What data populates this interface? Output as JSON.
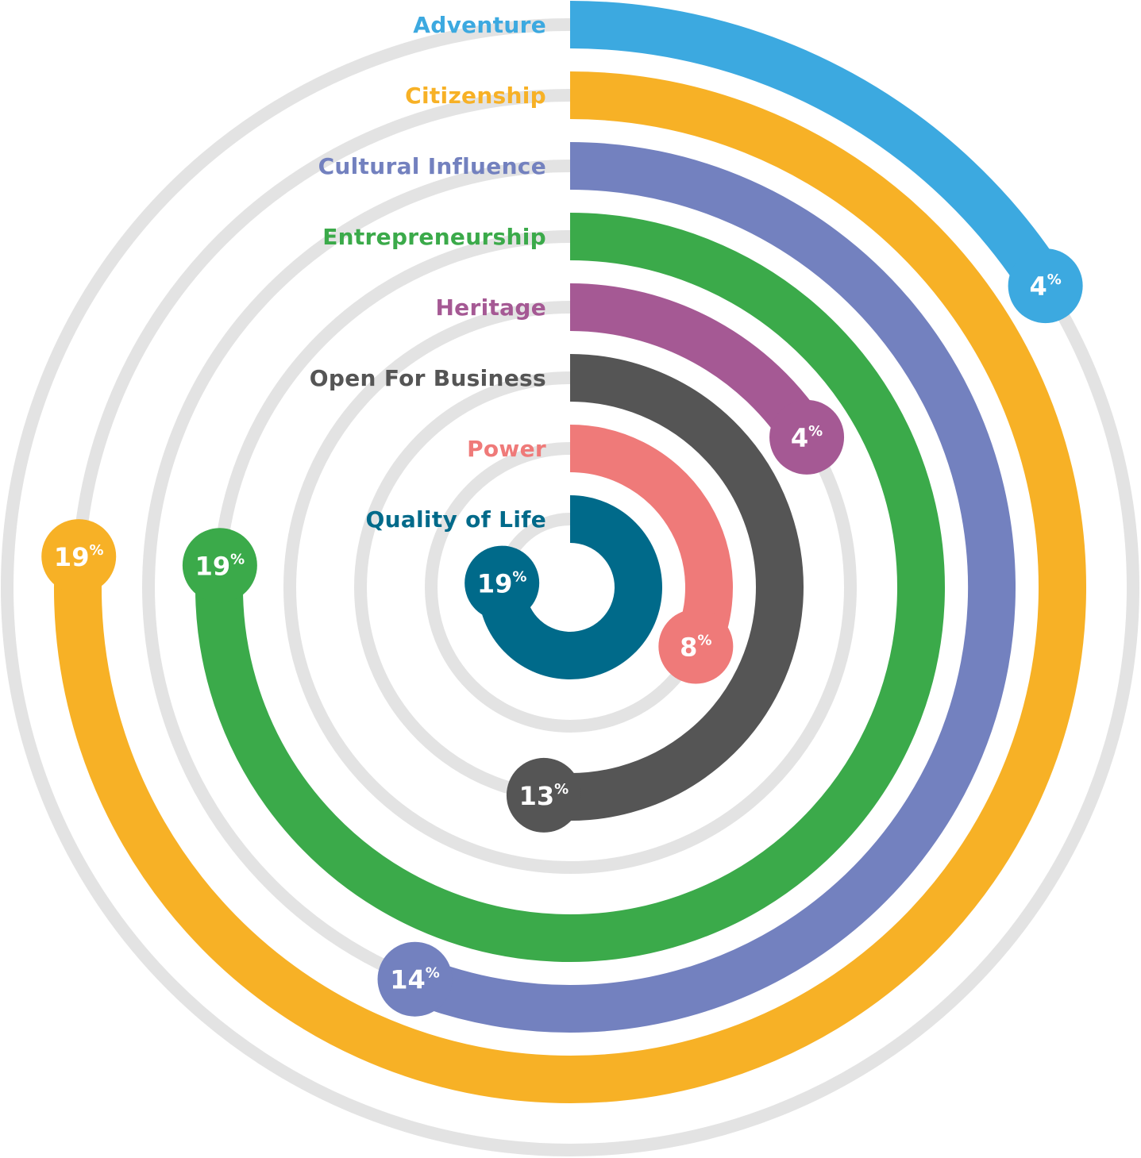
{
  "chart_data": {
    "type": "radial-bar",
    "unit_symbol": "%",
    "grid": true,
    "max_value": 25,
    "categories": [
      "Adventure",
      "Citizenship",
      "Cultural Influence",
      "Entrepreneurship",
      "Heritage",
      "Open For Business",
      "Power",
      "Quality of Life"
    ],
    "values": [
      4,
      19,
      14,
      19,
      4,
      13,
      8,
      19
    ],
    "value_labels": [
      "4",
      "19",
      "14",
      "19",
      "4",
      "13",
      "8",
      "19"
    ],
    "colors": [
      "#3CA9E0",
      "#F7B126",
      "#7381BF",
      "#3BAA4A",
      "#A55994",
      "#555555",
      "#EF7A79",
      "#006A8A"
    ],
    "track_color": "#E3E3E3"
  }
}
